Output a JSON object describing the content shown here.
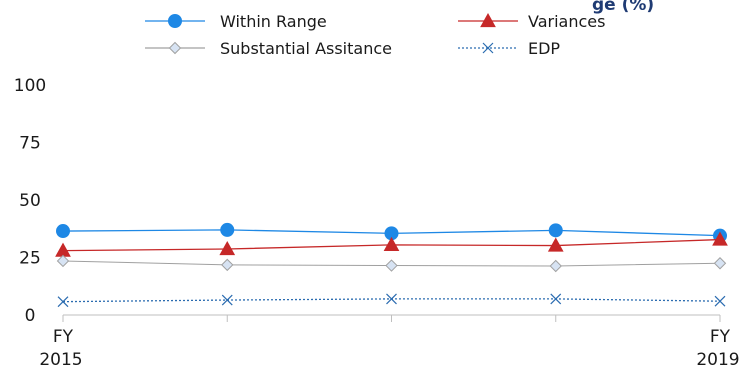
{
  "chart_data": {
    "type": "line",
    "title_fragment": "ge (%)",
    "categories": [
      "FY 2015",
      "",
      "",
      "",
      "FY 2019"
    ],
    "x_tick_labels": [
      {
        "line1": "FY",
        "line2": "2015"
      },
      {
        "line1": "",
        "line2": ""
      },
      {
        "line1": "",
        "line2": ""
      },
      {
        "line1": "",
        "line2": ""
      },
      {
        "line1": "FY",
        "line2": "2019"
      }
    ],
    "ylim": [
      0,
      100
    ],
    "yticks": [
      0,
      25,
      50,
      75,
      100
    ],
    "grid": false,
    "legend_position": "top",
    "series": [
      {
        "name": "Within Range",
        "values": [
          36.5,
          37.0,
          35.5,
          36.8,
          34.5
        ],
        "color": "#1e88e5",
        "marker": "circle",
        "dash": ""
      },
      {
        "name": "Variances",
        "values": [
          28.0,
          28.7,
          30.5,
          30.2,
          32.8
        ],
        "color": "#c62828",
        "marker": "triangle",
        "dash": ""
      },
      {
        "name": "Substantial Assitance",
        "values": [
          23.5,
          21.8,
          21.5,
          21.3,
          22.5
        ],
        "color": "#a0a0a0",
        "marker": "diamond",
        "dash": ""
      },
      {
        "name": "EDP",
        "values": [
          5.8,
          6.5,
          7.0,
          7.0,
          6.0
        ],
        "color": "#2b6cb0",
        "marker": "x",
        "dash": "2,2"
      }
    ]
  }
}
